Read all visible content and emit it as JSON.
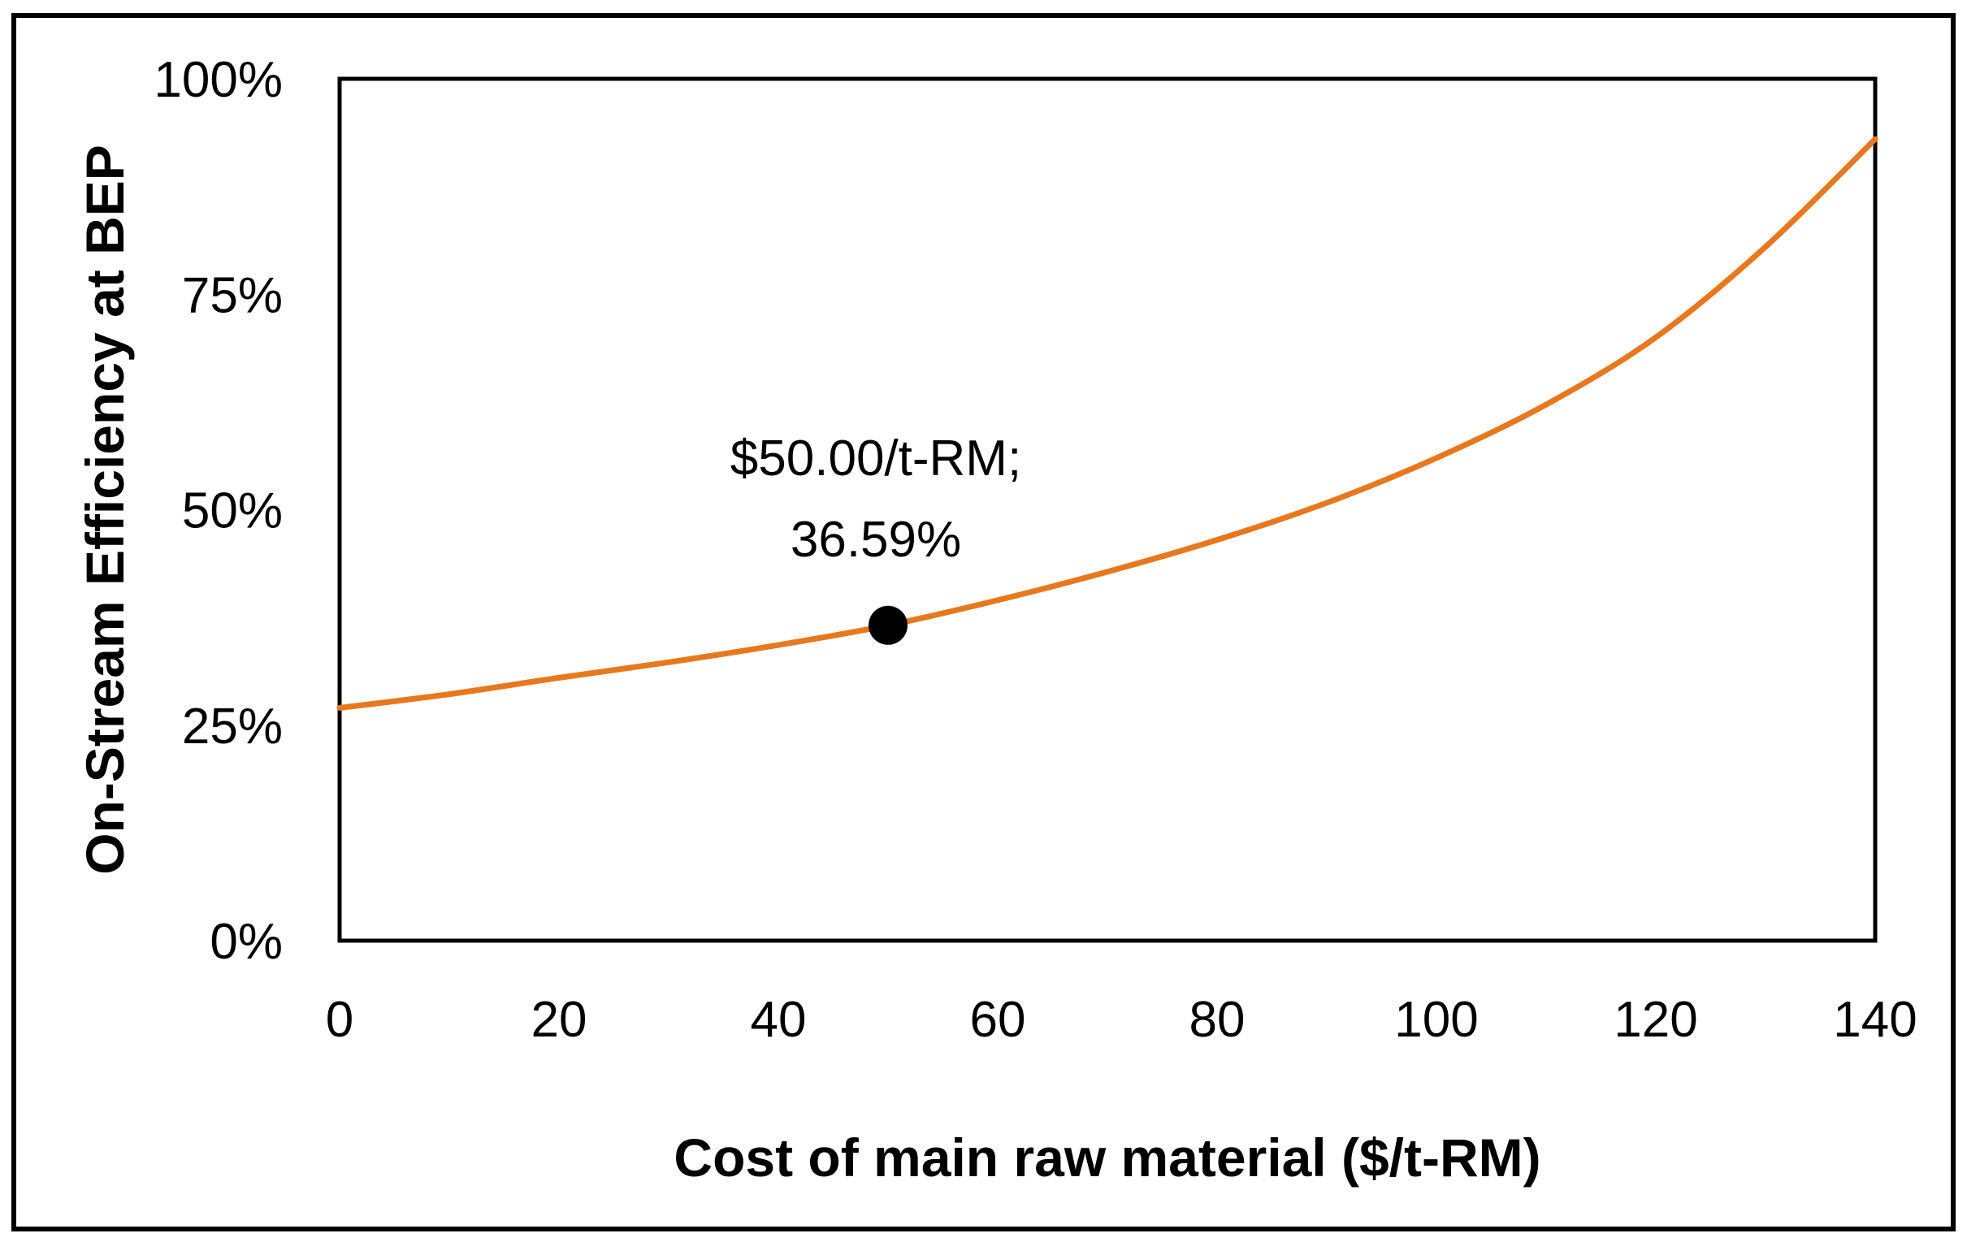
{
  "chart_data": {
    "type": "line",
    "title": "",
    "xlabel": "Cost of main raw material ($/t-RM)",
    "ylabel": "On-Stream Efficiency at BEP",
    "xlim": [
      0,
      140
    ],
    "ylim": [
      0,
      100
    ],
    "x_ticks": [
      0,
      20,
      40,
      60,
      80,
      100,
      120,
      140
    ],
    "x_tick_labels": [
      "0",
      "20",
      "40",
      "60",
      "80",
      "100",
      "120",
      "140"
    ],
    "y_ticks": [
      0,
      25,
      50,
      75,
      100
    ],
    "y_tick_labels": [
      "0%",
      "25%",
      "50%",
      "75%",
      "100%"
    ],
    "grid": false,
    "legend": "none",
    "series": [
      {
        "name": "On-Stream Efficiency at BEP",
        "color": "#E8781E",
        "x": [
          0,
          10,
          20,
          30,
          40,
          50,
          60,
          70,
          80,
          90,
          100,
          110,
          120,
          130,
          140
        ],
        "y": [
          27.0,
          28.6,
          30.5,
          32.3,
          34.3,
          36.59,
          39.5,
          42.8,
          46.5,
          50.8,
          56.0,
          62.2,
          70.0,
          80.5,
          93.0
        ]
      }
    ],
    "highlight_point": {
      "x": 50,
      "y": 36.59,
      "color": "#000000",
      "label_line1": "$50.00/t-RM;",
      "label_line2": "36.59%"
    }
  }
}
